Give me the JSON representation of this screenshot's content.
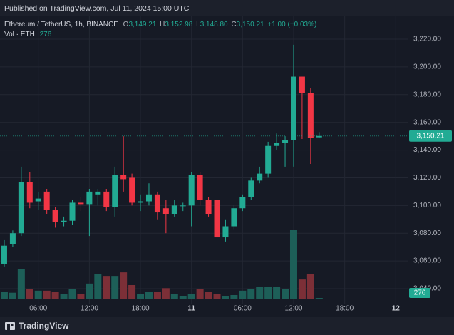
{
  "header": {
    "published": "Published on TradingView.com, Jul 11, 2024 15:00 UTC"
  },
  "footer": {
    "brand": "TradingView"
  },
  "chart_data": {
    "type": "candlestick",
    "legend": {
      "symbol": "Ethereum / TetherUS, 1h, BINANCE",
      "open": {
        "label": "O",
        "value": "3,149.21"
      },
      "high": {
        "label": "H",
        "value": "3,152.98"
      },
      "low": {
        "label": "L",
        "value": "3,148.80"
      },
      "close": {
        "label": "C",
        "value": "3,150.21"
      },
      "change": "+1.00 (+0.03%)",
      "volume_label": "Vol · ETH",
      "volume_value": "276"
    },
    "last_price_label": "3,150.21",
    "up_color": "#22ab94",
    "down_color": "#f23645",
    "volume_up_color": "#1d5f58",
    "volume_down_color": "#7c2f37",
    "candles": {
      "open": [
        3058,
        3072,
        3080,
        3117,
        3103,
        3110,
        3097,
        3088,
        3089,
        3102,
        3101,
        3108,
        3110,
        3099,
        3122,
        3120,
        3102,
        3103,
        3108,
        3098,
        3094,
        3100,
        3100,
        3122,
        3104,
        3104,
        3077,
        3085,
        3098,
        3106,
        3118,
        3123,
        3143,
        3145,
        3147,
        3193,
        3181,
        3149.21
      ],
      "high": [
        3075,
        3082,
        3128,
        3124,
        3110,
        3112,
        3099,
        3092,
        3104,
        3106,
        3112,
        3112,
        3112,
        3128,
        3150,
        3123,
        3108,
        3116,
        3110,
        3104,
        3104,
        3102,
        3124,
        3124,
        3106,
        3106,
        3090,
        3100,
        3108,
        3120,
        3128,
        3146,
        3152,
        3150,
        3216,
        3193,
        3185,
        3152.98
      ],
      "low": [
        3056,
        3070,
        3078,
        3098,
        3097,
        3094,
        3084,
        3085,
        3086,
        3096,
        3078,
        3100,
        3096,
        3092,
        3110,
        3100,
        3096,
        3100,
        3090,
        3080,
        3092,
        3096,
        3085,
        3100,
        3092,
        3054,
        3074,
        3083,
        3096,
        3104,
        3116,
        3120,
        3140,
        3128,
        3128,
        3148,
        3130,
        3148.8
      ],
      "close": [
        3071,
        3080,
        3117,
        3102,
        3105,
        3097,
        3088,
        3089,
        3102,
        3101,
        3110,
        3110,
        3099,
        3122,
        3119,
        3102,
        3103,
        3108,
        3095,
        3094,
        3100,
        3100,
        3122,
        3104,
        3094,
        3077,
        3085,
        3098,
        3106,
        3118,
        3123,
        3143,
        3145,
        3147,
        3193,
        3181,
        3149,
        3150.21
      ]
    },
    "volume": [
      1400,
      1300,
      6000,
      2100,
      1700,
      1700,
      1400,
      1100,
      2000,
      1100,
      3100,
      4900,
      4600,
      4600,
      5300,
      2800,
      1100,
      1400,
      1400,
      2200,
      1100,
      700,
      1100,
      2000,
      1400,
      1100,
      700,
      840,
      1700,
      2000,
      2500,
      2500,
      2500,
      2000,
      13700,
      3900,
      5000,
      276
    ],
    "vlim": [
      0,
      14000
    ],
    "xlim": [
      -0.5,
      47.4
    ],
    "xticks": [
      {
        "value": 4,
        "label": "06:00"
      },
      {
        "value": 10,
        "label": "12:00"
      },
      {
        "value": 16,
        "label": "18:00"
      },
      {
        "value": 22,
        "label": "11"
      },
      {
        "value": 28,
        "label": "06:00"
      },
      {
        "value": 34,
        "label": "12:00"
      },
      {
        "value": 40,
        "label": "18:00"
      },
      {
        "value": 46,
        "label": "12"
      }
    ],
    "ylim": [
      3029.7,
      3237
    ],
    "yticks": [
      {
        "value": 3040,
        "label": "3,040.00"
      },
      {
        "value": 3060,
        "label": "3,060.00"
      },
      {
        "value": 3080,
        "label": "3,080.00"
      },
      {
        "value": 3100,
        "label": "3,100.00"
      },
      {
        "value": 3120,
        "label": "3,120.00"
      },
      {
        "value": 3140,
        "label": "3,140.00"
      },
      {
        "value": 3160,
        "label": "3,160.00"
      },
      {
        "value": 3180,
        "label": "3,180.00"
      },
      {
        "value": 3200,
        "label": "3,200.00"
      },
      {
        "value": 3220,
        "label": "3,220.00"
      }
    ],
    "grid": true
  }
}
